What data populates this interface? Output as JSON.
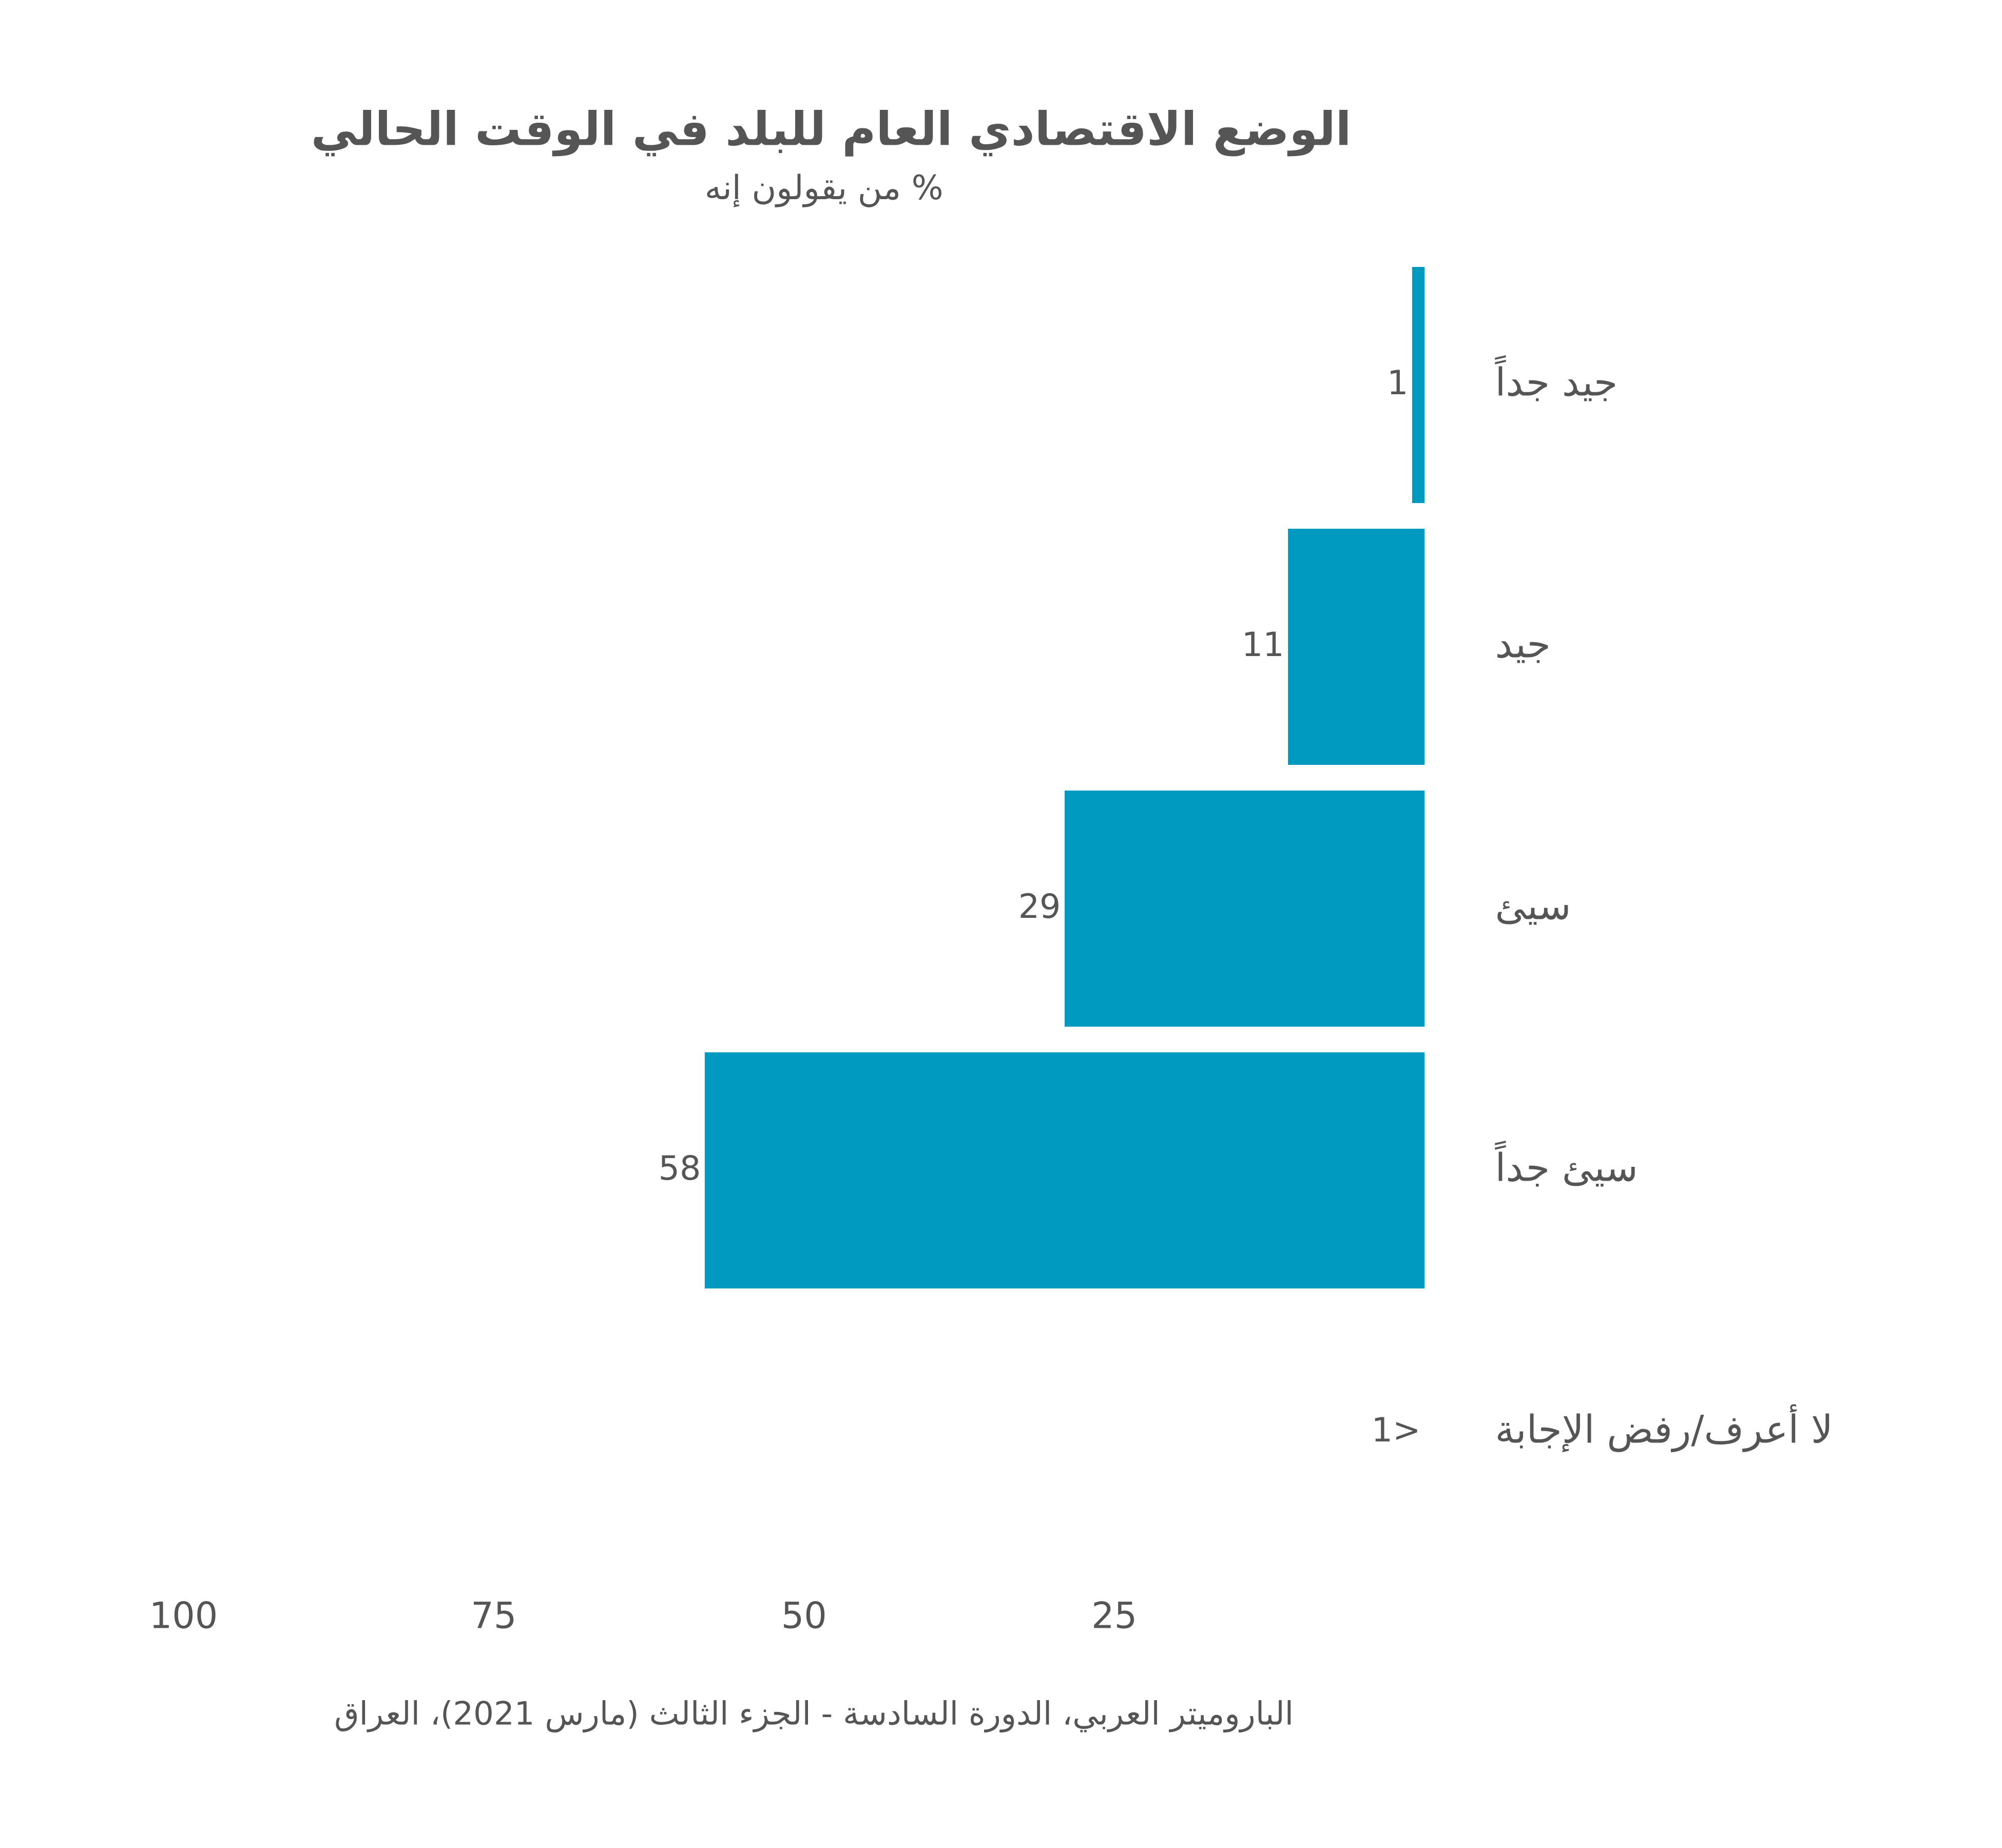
{
  "chart_data": {
    "type": "bar",
    "orientation": "horizontal",
    "title": "الوضع الاقتصادي العام للبلد في الوقت الحالي",
    "subtitle": "% من يقولون إنه",
    "categories": [
      "جيد جداً",
      "جيد",
      "سيئ",
      "سيئ جداً",
      "لا أعرف/رفض الإجابة"
    ],
    "values": [
      1,
      11,
      29,
      58,
      0
    ],
    "value_labels": [
      "1",
      "11",
      "29",
      "58",
      "<1"
    ],
    "color": "#0099c0",
    "xlim": [
      0,
      100
    ],
    "xticks": [
      25,
      50,
      75,
      100
    ],
    "x_reversed": true,
    "source": "الباروميتر العربي، الدورة السادسة - الجزء الثالث (مارس 2021)، العراق"
  }
}
